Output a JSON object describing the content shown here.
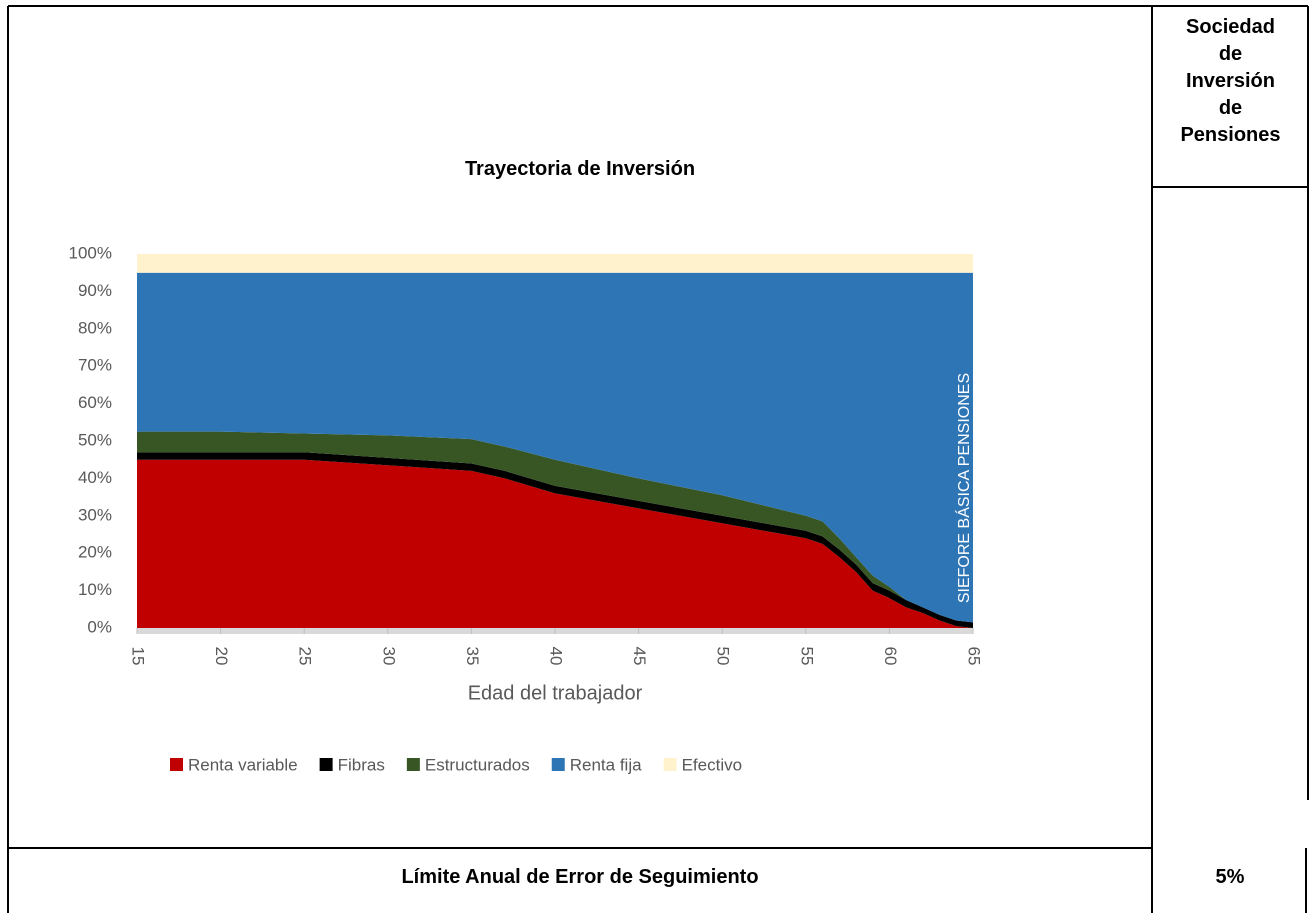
{
  "table": {
    "header": "Trayectoria de Inversión",
    "side_header": "Sociedad de Inversión de Pensiones",
    "footer_label": "Límite Anual de Error de Seguimiento",
    "footer_value": "5%"
  },
  "chart_data": {
    "type": "stacked_area",
    "x": [
      15,
      20,
      25,
      30,
      35,
      37,
      40,
      45,
      50,
      55,
      56,
      57,
      58,
      59,
      60,
      61,
      62,
      63,
      64,
      65
    ],
    "series": [
      {
        "name": "Renta variable",
        "color": "#c00000",
        "values": [
          45,
          45,
          45,
          43.5,
          42,
          40,
          36,
          32,
          28,
          24,
          22.5,
          19,
          15,
          10,
          8,
          5.5,
          4,
          2,
          0.5,
          0
        ]
      },
      {
        "name": "Fibras",
        "color": "#000000",
        "values": [
          2,
          2,
          2,
          2,
          2,
          2,
          2,
          2,
          2,
          2,
          2,
          2,
          2,
          2,
          2,
          2,
          1.5,
          1.5,
          1.5,
          1.5
        ]
      },
      {
        "name": "Estructurados",
        "color": "#375623",
        "values": [
          5.5,
          5.5,
          5,
          6,
          6.5,
          6.5,
          7,
          6,
          5.5,
          4,
          4,
          3,
          2,
          2,
          1,
          0,
          0,
          0,
          0,
          0
        ]
      },
      {
        "name": "Renta fija",
        "color": "#2e75b6",
        "values": [
          42.5,
          42.5,
          43,
          43.5,
          44.5,
          46.5,
          50,
          55,
          59.5,
          65,
          66.5,
          71,
          76,
          81,
          84,
          87.5,
          89.5,
          91.5,
          93,
          93.5
        ]
      },
      {
        "name": "Efectivo",
        "color": "#fff2cc",
        "values": [
          5,
          5,
          5,
          5,
          5,
          5,
          5,
          5,
          5,
          5,
          5,
          5,
          5,
          5,
          5,
          5,
          5,
          5,
          5,
          5
        ]
      }
    ],
    "xlabel": "Edad del trabajador",
    "annotation": "SIEFORE BÁSICA PENSIONES",
    "xlim": [
      15,
      65
    ],
    "xticks": [
      15,
      20,
      25,
      30,
      35,
      40,
      45,
      50,
      55,
      60,
      65
    ],
    "ylim": [
      0,
      100
    ],
    "yticks": [
      {
        "value": 0,
        "label": "0%"
      },
      {
        "value": 10,
        "label": "10%"
      },
      {
        "value": 20,
        "label": "20%"
      },
      {
        "value": 30,
        "label": "30%"
      },
      {
        "value": 40,
        "label": "40%"
      },
      {
        "value": 50,
        "label": "50%"
      },
      {
        "value": 60,
        "label": "60%"
      },
      {
        "value": 70,
        "label": "70%"
      },
      {
        "value": 80,
        "label": "80%"
      },
      {
        "value": 90,
        "label": "90%"
      },
      {
        "value": 100,
        "label": "100%"
      }
    ],
    "legend": "bottom"
  }
}
